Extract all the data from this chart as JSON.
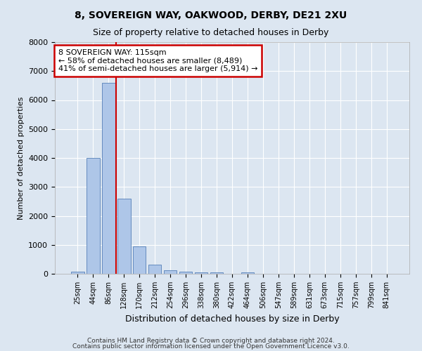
{
  "title1": "8, SOVEREIGN WAY, OAKWOOD, DERBY, DE21 2XU",
  "title2": "Size of property relative to detached houses in Derby",
  "xlabel": "Distribution of detached houses by size in Derby",
  "ylabel": "Number of detached properties",
  "footer1": "Contains HM Land Registry data © Crown copyright and database right 2024.",
  "footer2": "Contains public sector information licensed under the Open Government Licence v3.0.",
  "bar_labels": [
    "25sqm",
    "44sqm",
    "86sqm",
    "128sqm",
    "170sqm",
    "212sqm",
    "254sqm",
    "296sqm",
    "338sqm",
    "380sqm",
    "422sqm",
    "464sqm",
    "506sqm",
    "547sqm",
    "589sqm",
    "631sqm",
    "673sqm",
    "715sqm",
    "757sqm",
    "799sqm",
    "841sqm"
  ],
  "bar_values": [
    75,
    4000,
    6600,
    2600,
    950,
    310,
    130,
    80,
    55,
    50,
    0,
    50,
    0,
    0,
    0,
    0,
    0,
    0,
    0,
    0,
    0
  ],
  "bar_color": "#aec6e8",
  "bar_edge_color": "#5580b8",
  "ylim": [
    0,
    8000
  ],
  "yticks": [
    0,
    1000,
    2000,
    3000,
    4000,
    5000,
    6000,
    7000,
    8000
  ],
  "vline_x_idx": 2,
  "vline_color": "#cc0000",
  "annotation_text": "8 SOVEREIGN WAY: 115sqm\n← 58% of detached houses are smaller (8,489)\n41% of semi-detached houses are larger (5,914) →",
  "annotation_box_facecolor": "#ffffff",
  "annotation_box_edgecolor": "#cc0000",
  "bg_color": "#dce6f1",
  "plot_bg_color": "#dce6f1",
  "grid_color": "#ffffff",
  "title1_fontsize": 10,
  "title2_fontsize": 9,
  "xlabel_fontsize": 9,
  "ylabel_fontsize": 8
}
